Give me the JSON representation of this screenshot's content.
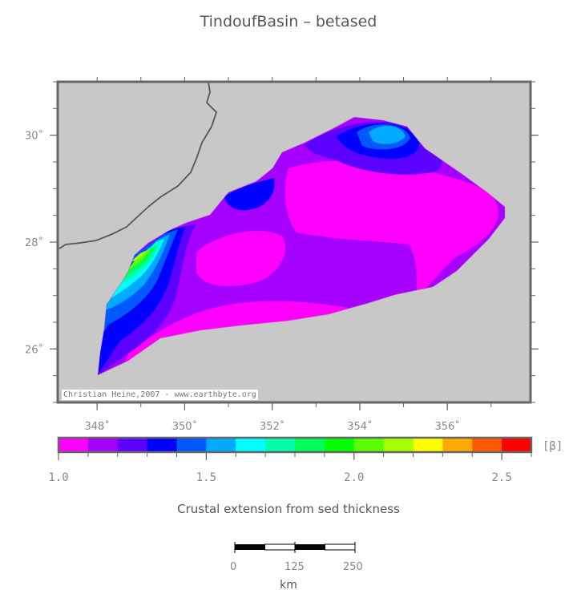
{
  "title": "TindoufBasin – betased",
  "map": {
    "lon_ticks": [
      {
        "value": 348,
        "label": "348˚"
      },
      {
        "value": 350,
        "label": "350˚"
      },
      {
        "value": 352,
        "label": "352˚"
      },
      {
        "value": 354,
        "label": "354˚"
      },
      {
        "value": 356,
        "label": "356˚"
      }
    ],
    "lat_ticks": [
      {
        "value": 30,
        "label": "30˚"
      },
      {
        "value": 28,
        "label": "28˚"
      },
      {
        "value": 26,
        "label": "26˚"
      }
    ],
    "lon_range": [
      347.1,
      357.9
    ],
    "lat_range": [
      25.0,
      31.0
    ],
    "background_color": "#c8c8c8",
    "credit": "Christian Heine,2007 - www.earthbyte.org"
  },
  "colorbar": {
    "unit_label": "[β]",
    "caption": "Crustal extension from sed thickness",
    "range": [
      1.0,
      2.6
    ],
    "colors": [
      "#ff00ff",
      "#a600ff",
      "#5c00ff",
      "#0000ff",
      "#0059ff",
      "#00aaff",
      "#00ffff",
      "#00ffaa",
      "#00ff59",
      "#00ff00",
      "#59ff00",
      "#a6ff00",
      "#ffff00",
      "#ffaa00",
      "#ff5900",
      "#ff0000"
    ],
    "ticks": [
      {
        "value": 1.0,
        "label": "1.0"
      },
      {
        "value": 1.5,
        "label": "1.5"
      },
      {
        "value": 2.0,
        "label": "2.0"
      },
      {
        "value": 2.5,
        "label": "2.5"
      }
    ]
  },
  "scalebar": {
    "labels": [
      "0",
      "125",
      "250"
    ],
    "unit": "km"
  }
}
